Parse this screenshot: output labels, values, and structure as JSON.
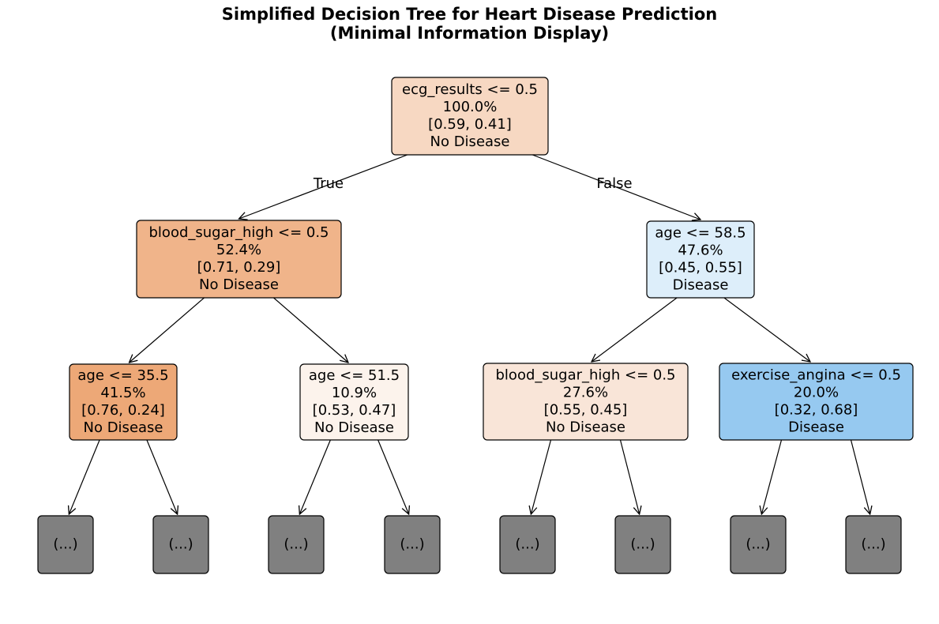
{
  "title": {
    "line1": "Simplified Decision Tree for Heart Disease Prediction",
    "line2": "(Minimal Information Display)"
  },
  "edge_labels": {
    "true": "True",
    "false": "False"
  },
  "colors": {
    "no_disease_strong": "#eda877",
    "no_disease_medium": "#f0b48a",
    "no_disease_light": "#f7d8c2",
    "no_disease_faint": "#f9e5d8",
    "no_disease_near_white": "#fcf3ec",
    "disease_light": "#ddeefa",
    "disease_medium": "#96c9f0",
    "truncated": "#808080"
  },
  "nodes": [
    {
      "id": "root",
      "lines": [
        "ecg_results <= 0.5",
        "100.0%",
        "[0.59, 0.41]",
        "No Disease"
      ],
      "color": "#f7d8c2"
    },
    {
      "id": "l",
      "lines": [
        "blood_sugar_high <= 0.5",
        "52.4%",
        "[0.71, 0.29]",
        "No Disease"
      ],
      "color": "#f0b48a"
    },
    {
      "id": "r",
      "lines": [
        "age <= 58.5",
        "47.6%",
        "[0.45, 0.55]",
        "Disease"
      ],
      "color": "#ddeefa"
    },
    {
      "id": "ll",
      "lines": [
        "age <= 35.5",
        "41.5%",
        "[0.76, 0.24]",
        "No Disease"
      ],
      "color": "#eda877"
    },
    {
      "id": "lr",
      "lines": [
        "age <= 51.5",
        "10.9%",
        "[0.53, 0.47]",
        "No Disease"
      ],
      "color": "#fcf3ec"
    },
    {
      "id": "rl",
      "lines": [
        "blood_sugar_high <= 0.5",
        "27.6%",
        "[0.55, 0.45]",
        "No Disease"
      ],
      "color": "#f9e5d8"
    },
    {
      "id": "rr",
      "lines": [
        "exercise_angina <= 0.5",
        "20.0%",
        "[0.32, 0.68]",
        "Disease"
      ],
      "color": "#96c9f0"
    },
    {
      "id": "t1",
      "lines": [
        "(...)"
      ],
      "color": "#808080"
    },
    {
      "id": "t2",
      "lines": [
        "(...)"
      ],
      "color": "#808080"
    },
    {
      "id": "t3",
      "lines": [
        "(...)"
      ],
      "color": "#808080"
    },
    {
      "id": "t4",
      "lines": [
        "(...)"
      ],
      "color": "#808080"
    },
    {
      "id": "t5",
      "lines": [
        "(...)"
      ],
      "color": "#808080"
    },
    {
      "id": "t6",
      "lines": [
        "(...)"
      ],
      "color": "#808080"
    },
    {
      "id": "t7",
      "lines": [
        "(...)"
      ],
      "color": "#808080"
    },
    {
      "id": "t8",
      "lines": [
        "(...)"
      ],
      "color": "#808080"
    }
  ],
  "edges": [
    {
      "from": "root",
      "to": "l",
      "label": "True"
    },
    {
      "from": "root",
      "to": "r",
      "label": "False"
    },
    {
      "from": "l",
      "to": "ll"
    },
    {
      "from": "l",
      "to": "lr"
    },
    {
      "from": "r",
      "to": "rl"
    },
    {
      "from": "r",
      "to": "rr"
    },
    {
      "from": "ll",
      "to": "t1"
    },
    {
      "from": "ll",
      "to": "t2"
    },
    {
      "from": "lr",
      "to": "t3"
    },
    {
      "from": "lr",
      "to": "t4"
    },
    {
      "from": "rl",
      "to": "t5"
    },
    {
      "from": "rl",
      "to": "t6"
    },
    {
      "from": "rr",
      "to": "t7"
    },
    {
      "from": "rr",
      "to": "t8"
    }
  ]
}
